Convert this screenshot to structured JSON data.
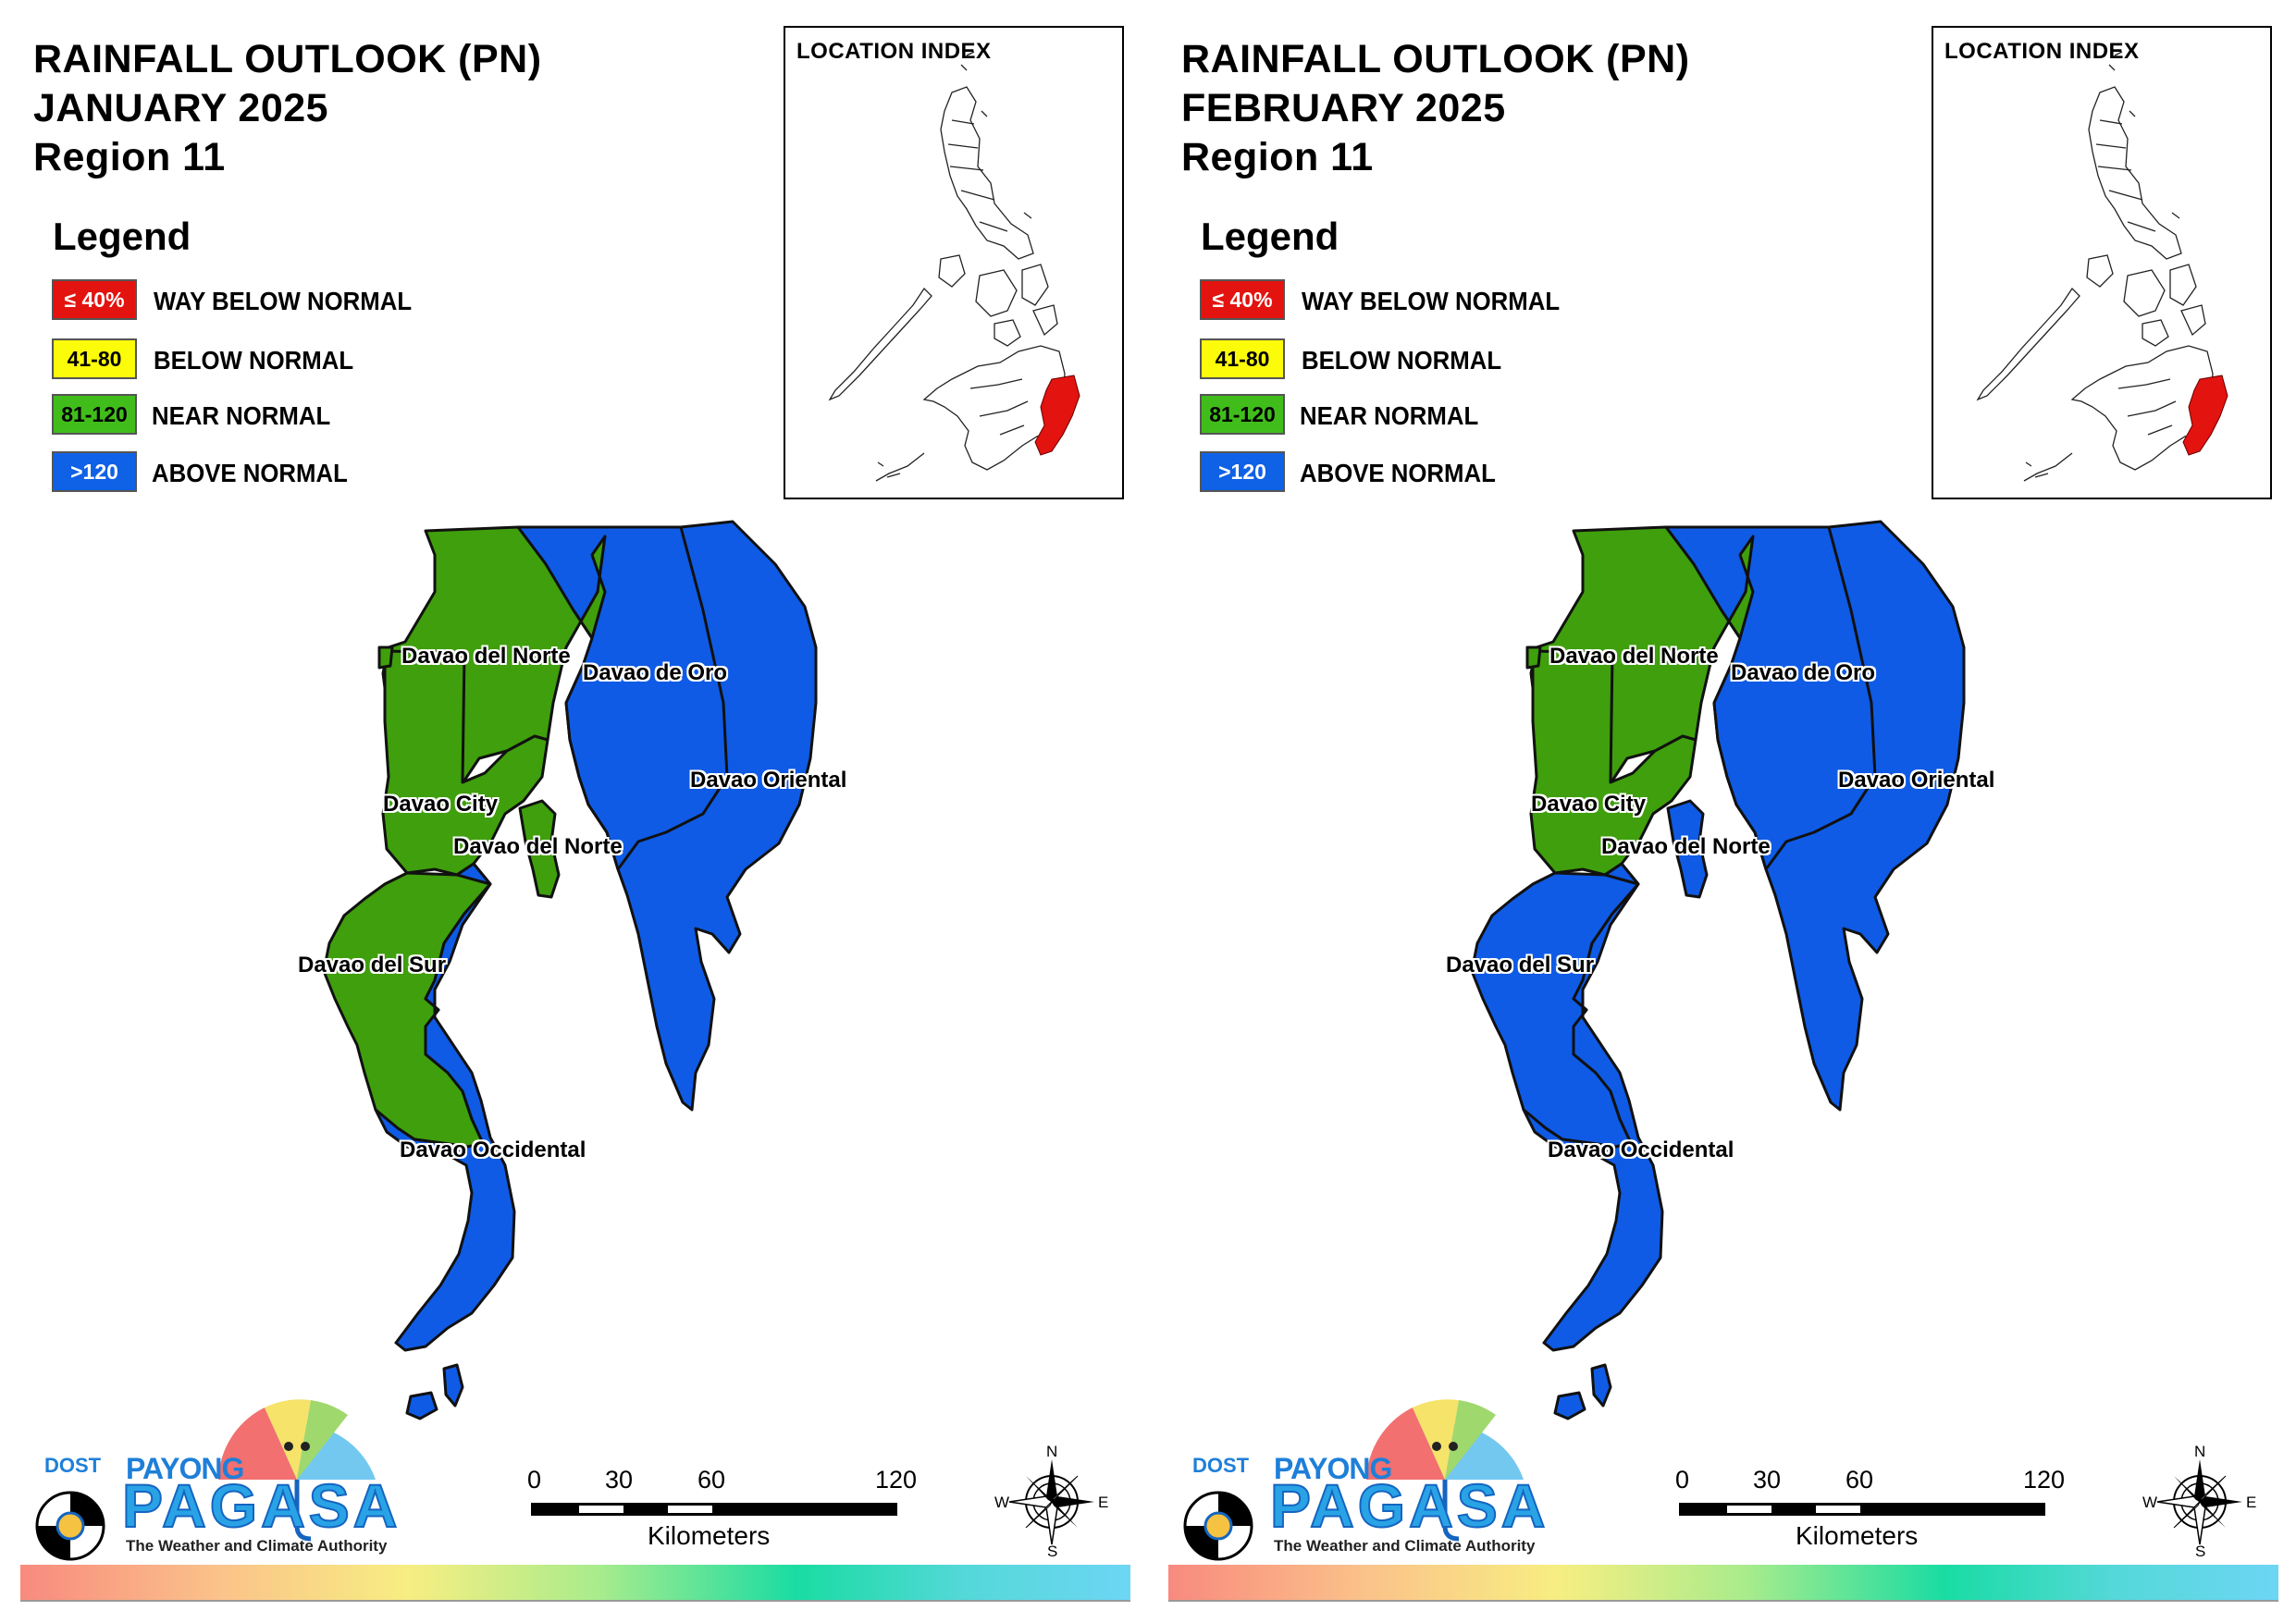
{
  "legend": {
    "title": "Legend",
    "items": [
      {
        "range": "≤ 40%",
        "label": "WAY BELOW NORMAL",
        "color": "#e3130f",
        "text_color": "#ffffff"
      },
      {
        "range": "41-80",
        "label": "BELOW NORMAL",
        "color": "#fbfb0a",
        "text_color": "#000000"
      },
      {
        "range": "81-120",
        "label": "NEAR NORMAL",
        "color": "#41bd1b",
        "text_color": "#000000"
      },
      {
        "range": ">120",
        "label": "ABOVE NORMAL",
        "color": "#0f61e6",
        "text_color": "#ffffff"
      }
    ]
  },
  "colors": {
    "near_normal": "#3f9f0c",
    "above_normal": "#0f5be6",
    "index_highlight": "#e3130f"
  },
  "panels": [
    {
      "title_line1": "RAINFALL OUTLOOK (PN)",
      "title_line2": "JANUARY 2025",
      "title_line3": "Region 11",
      "inset_title": "LOCATION INDEX",
      "provinces": [
        {
          "name": "Davao del Norte",
          "category": "NEAR NORMAL"
        },
        {
          "name": "Davao de Oro",
          "category": "ABOVE NORMAL"
        },
        {
          "name": "Davao Oriental",
          "category": "ABOVE NORMAL"
        },
        {
          "name": "Davao City",
          "category": "NEAR NORMAL"
        },
        {
          "name": "Davao del Norte",
          "category": "NEAR NORMAL"
        },
        {
          "name": "Davao del Sur",
          "category": "NEAR NORMAL"
        },
        {
          "name": "Davao Occidental",
          "category": "ABOVE NORMAL"
        }
      ]
    },
    {
      "title_line1": "RAINFALL OUTLOOK (PN)",
      "title_line2": "FEBRUARY 2025",
      "title_line3": "Region 11",
      "inset_title": "LOCATION INDEX",
      "provinces": [
        {
          "name": "Davao del Norte",
          "category": "NEAR NORMAL"
        },
        {
          "name": "Davao de Oro",
          "category": "ABOVE NORMAL"
        },
        {
          "name": "Davao Oriental",
          "category": "ABOVE NORMAL"
        },
        {
          "name": "Davao City",
          "category": "NEAR NORMAL"
        },
        {
          "name": "Davao del Norte",
          "category": "ABOVE NORMAL"
        },
        {
          "name": "Davao del Sur",
          "category": "ABOVE NORMAL"
        },
        {
          "name": "Davao Occidental",
          "category": "ABOVE NORMAL"
        }
      ]
    }
  ],
  "logo": {
    "dost": "DOST",
    "payong": "PAYONG",
    "pagasa": "PAGASA",
    "tagline": "The Weather and Climate Authority"
  },
  "scale_bar": {
    "ticks": [
      "0",
      "30",
      "60",
      "120"
    ],
    "unit": "Kilometers"
  },
  "compass": {
    "n": "N",
    "s": "S",
    "e": "E",
    "w": "W"
  }
}
